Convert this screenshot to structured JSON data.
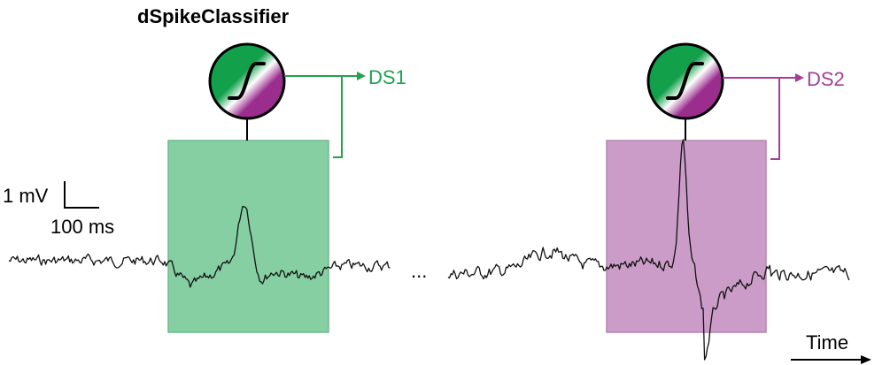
{
  "title": "dSpikeClassifier",
  "outputs": [
    {
      "label": "DS1",
      "color": "#1fa34e"
    },
    {
      "label": "DS2",
      "color": "#a33e96"
    }
  ],
  "windows": [
    {
      "color": "#86cfa3"
    },
    {
      "color": "#cc9cc8"
    }
  ],
  "scale_bar": {
    "voltage_label": "1 mV",
    "time_label": "100 ms"
  },
  "ellipsis": "...",
  "time_axis_label": "Time",
  "colors": {
    "trace": "#111111",
    "ink": "#000000",
    "green_dark": "#12a04a",
    "purple_dark": "#9b2d8e"
  }
}
